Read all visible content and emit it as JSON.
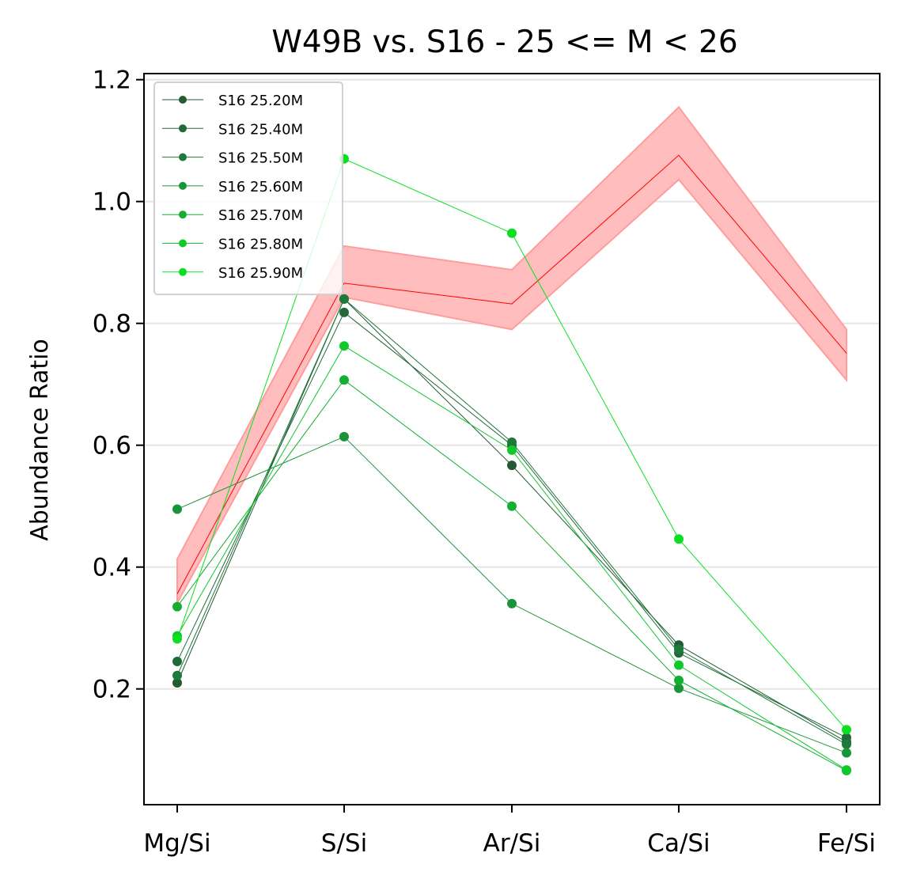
{
  "chart_data": {
    "type": "line",
    "title": "W49B vs. S16 - 25 <= M < 26",
    "xlabel": "",
    "ylabel": "Abundance Ratio",
    "categories": [
      "Mg/Si",
      "S/Si",
      "Ar/Si",
      "Ca/Si",
      "Fe/Si"
    ],
    "ylim": [
      0.01,
      1.21
    ],
    "yticks": [
      "0.2",
      "0.4",
      "0.6",
      "0.8",
      "1.0",
      "1.2"
    ],
    "grid": "horizontal",
    "legend_position": "upper-left",
    "reference": {
      "color": "#ff0000",
      "band_color": "#ffbdbd",
      "values": [
        0.356,
        0.866,
        0.832,
        1.076,
        0.751
      ],
      "upper": [
        0.413,
        0.927,
        0.888,
        1.155,
        0.79
      ],
      "lower": [
        0.341,
        0.843,
        0.79,
        1.036,
        0.707
      ]
    },
    "series": [
      {
        "name": "S16 25.20M",
        "color": "#235a33",
        "values": [
          0.21,
          0.84,
          0.567,
          0.272,
          0.113
        ]
      },
      {
        "name": "S16 25.40M",
        "color": "#22693a",
        "values": [
          0.245,
          0.818,
          0.6,
          0.259,
          0.12
        ]
      },
      {
        "name": "S16 25.50M",
        "color": "#1e7a3a",
        "values": [
          0.222,
          0.84,
          0.605,
          0.265,
          0.109
        ]
      },
      {
        "name": "S16 25.60M",
        "color": "#1a9438",
        "values": [
          0.495,
          0.614,
          0.34,
          0.201,
          0.095
        ]
      },
      {
        "name": "S16 25.70M",
        "color": "#14ae32",
        "values": [
          0.335,
          0.707,
          0.5,
          0.214,
          0.066
        ]
      },
      {
        "name": "S16 25.80M",
        "color": "#0fc82a",
        "values": [
          0.287,
          0.763,
          0.592,
          0.239,
          0.067
        ]
      },
      {
        "name": "S16 25.90M",
        "color": "#0ae020",
        "values": [
          0.282,
          1.07,
          0.948,
          0.446,
          0.133
        ]
      }
    ]
  }
}
